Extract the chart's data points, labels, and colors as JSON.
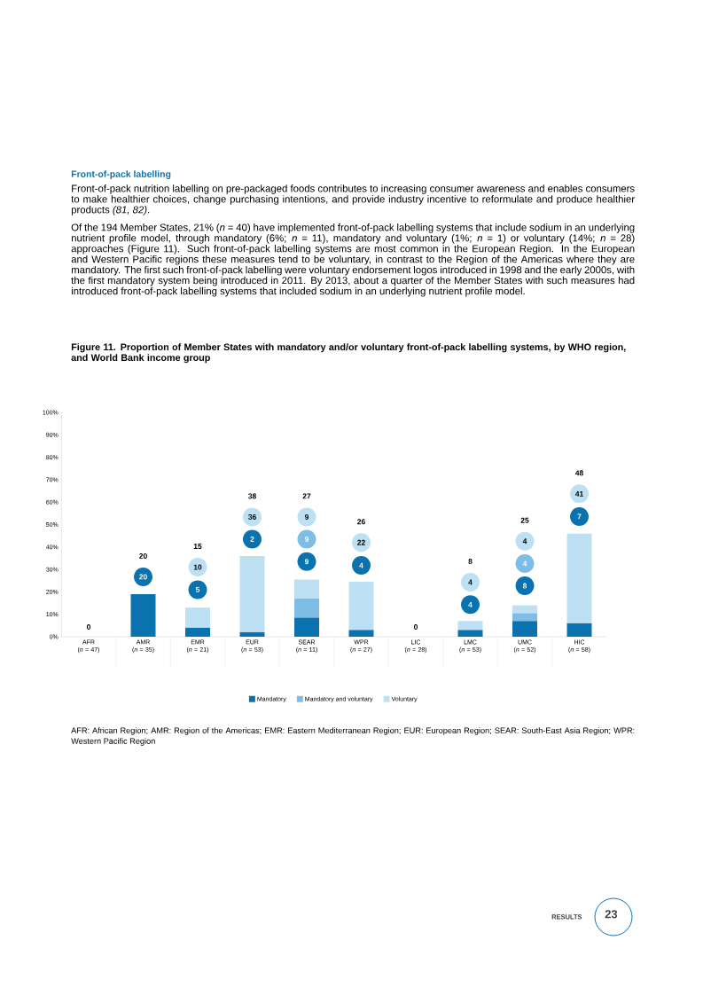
{
  "chart_data": {
    "type": "bar",
    "stacked": true,
    "title": "Figure 11. Proportion of Member States with mandatory and/or voluntary front-of-pack labelling systems, by WHO region, and World Bank income group",
    "categories": [
      "AFR (*n* = 47)",
      "AMR (*n* = 35)",
      "EMR (*n* = 21)",
      "EUR (*n* = 53)",
      "SEAR (*n* = 11)",
      "WPR (*n* = 27)",
      "LIC (*n* = 28)",
      "LMC (*n* = 53)",
      "UMC (*n* = 52)",
      "HIC (*n* = 58)"
    ],
    "series": [
      {
        "name": "Mandatory",
        "color": "#0a72ae",
        "values": [
          0,
          19,
          4,
          2,
          8.5,
          3,
          0,
          3,
          7,
          6
        ]
      },
      {
        "name": "Mandatory and voluntary",
        "color": "#7dbde6",
        "values": [
          0,
          0,
          0,
          0,
          8.5,
          0,
          0,
          0,
          3.5,
          0
        ]
      },
      {
        "name": "Voluntary",
        "color": "#bde0f3",
        "values": [
          0,
          0,
          9,
          34,
          8.5,
          21.5,
          0,
          4,
          3.5,
          40
        ]
      }
    ],
    "ylim": [
      0,
      100
    ],
    "yticks": [
      {
        "value": 0,
        "label": "0%"
      },
      {
        "value": 10,
        "label": "10%"
      },
      {
        "value": 20,
        "label": "20%"
      },
      {
        "value": 30,
        "label": "30%"
      },
      {
        "value": 40,
        "label": "40%"
      },
      {
        "value": 50,
        "label": "50%"
      },
      {
        "value": 60,
        "label": "60%"
      },
      {
        "value": 70,
        "label": "70%"
      },
      {
        "value": 80,
        "label": "80%"
      },
      {
        "value": 90,
        "label": "90%"
      },
      {
        "value": 100,
        "label": "100%"
      }
    ],
    "legend": "bottom",
    "annotations": [
      "Front-of-pack labelling",
      "Front-of-pack nutrition labelling on pre-packaged foods contributes to increasing consumer awareness and enables consumers to make healthier choices, change purchasing intentions, and provide industry incentive to reformulate and produce healthier products *(81, 82)*.",
      "Of the 194 Member States, 21% (*n* = 40) have implemented front-of-pack labelling systems that include sodium in an underlying nutrient profile model, through mandatory (6%; *n* = 11), mandatory and voluntary (1%; *n* = 1) or voluntary (14%; *n* = 28) approaches (Figure 11). Such front-of-pack labelling systems are most common in the European Region. In the European and Western Pacific regions these measures tend to be voluntary, in contrast to the Region of the Americas where they are mandatory. The first such front-of-pack labelling were voluntary endorsement logos introduced in 1998 and the early 2000s, with the first mandatory system being introduced in 2011. By 2013, about a quarter of the Member States with such measures had introduced front-of-pack labelling systems that included sodium in an underlying nutrient profile model.",
      "AFR: African Region; AMR: Region of the Americas; EMR: Eastern Mediterranean Region; EUR: European Region; SEAR: South-East Asia Region; WPR: Western Pacific Region",
      "RESULTS",
      "23",
      "0",
      "20",
      "15",
      "38",
      "27",
      "26",
      "0",
      "8",
      "25",
      "48",
      {
        "text": "20",
        "x": "AMR (*n* = 35)",
        "y": 26.7
      },
      {
        "text": "5",
        "x": "EMR (*n* = 21)",
        "y": 21
      },
      {
        "text": "10",
        "x": "EMR (*n* = 21)",
        "y": 31
      },
      {
        "text": "2",
        "x": "EUR (*n* = 53)",
        "y": 43.5
      },
      {
        "text": "36",
        "x": "EUR (*n* = 53)",
        "y": 53.4
      },
      {
        "text": "9",
        "x": "SEAR (*n* = 11)",
        "y": 33.5
      },
      {
        "text": "9",
        "x": "SEAR (*n* = 11)",
        "y": 43.5
      },
      {
        "text": "9",
        "x": "SEAR (*n* = 11)",
        "y": 53.4
      },
      {
        "text": "4",
        "x": "WPR (*n* = 27)",
        "y": 31.8
      },
      {
        "text": "22",
        "x": "WPR (*n* = 27)",
        "y": 42
      },
      {
        "text": "4",
        "x": "LMC (*n* = 53)",
        "y": 14.3
      },
      {
        "text": "4",
        "x": "LMC (*n* = 53)",
        "y": 24.3
      },
      {
        "text": "8",
        "x": "UMC (*n* = 52)",
        "y": 22.7
      },
      {
        "text": "4",
        "x": "UMC (*n* = 52)",
        "y": 32.6
      },
      {
        "text": "4",
        "x": "UMC (*n* = 52)",
        "y": 42.6
      },
      {
        "text": "7",
        "x": "HIC (*n* = 58)",
        "y": 53.6
      },
      {
        "text": "41",
        "x": "HIC (*n* = 58)",
        "y": 63.7
      }
    ]
  }
}
